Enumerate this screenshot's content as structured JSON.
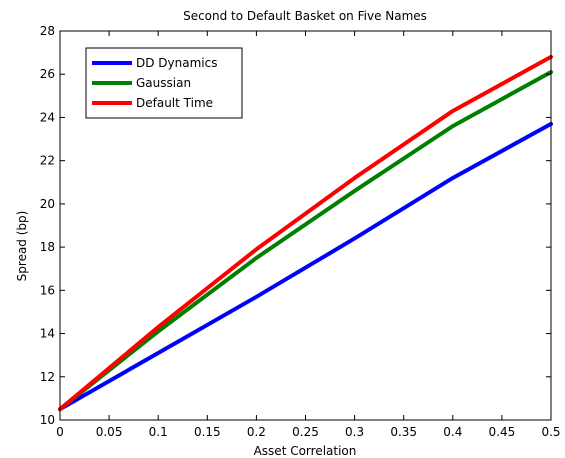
{
  "chart_data": {
    "type": "line",
    "title": "Second to Default Basket on Five Names",
    "xlabel": "Asset Correlation",
    "ylabel": "Spread (bp)",
    "xlim": [
      0,
      0.5
    ],
    "ylim": [
      10,
      28
    ],
    "xticks": [
      0,
      0.05,
      0.1,
      0.15,
      0.2,
      0.25,
      0.3,
      0.35,
      0.4,
      0.45,
      0.5
    ],
    "xtick_labels": [
      "0",
      "0.05",
      "0.1",
      "0.15",
      "0.2",
      "0.25",
      "0.3",
      "0.35",
      "0.4",
      "0.45",
      "0.5"
    ],
    "yticks": [
      10,
      12,
      14,
      16,
      18,
      20,
      22,
      24,
      26,
      28
    ],
    "ytick_labels": [
      "10",
      "12",
      "14",
      "16",
      "18",
      "20",
      "22",
      "24",
      "26",
      "28"
    ],
    "grid": false,
    "legend_position": "top-left",
    "x": [
      0,
      0.1,
      0.2,
      0.3,
      0.4,
      0.5
    ],
    "series": [
      {
        "name": "DD Dynamics",
        "color": "#0000ff",
        "values": [
          10.5,
          13.1,
          15.7,
          18.4,
          21.2,
          23.7
        ]
      },
      {
        "name": "Gaussian",
        "color": "#008000",
        "values": [
          10.5,
          14.1,
          17.5,
          20.6,
          23.6,
          26.1
        ]
      },
      {
        "name": "Default Time",
        "color": "#ff0000",
        "values": [
          10.5,
          14.3,
          17.9,
          21.2,
          24.3,
          26.8
        ]
      }
    ]
  }
}
